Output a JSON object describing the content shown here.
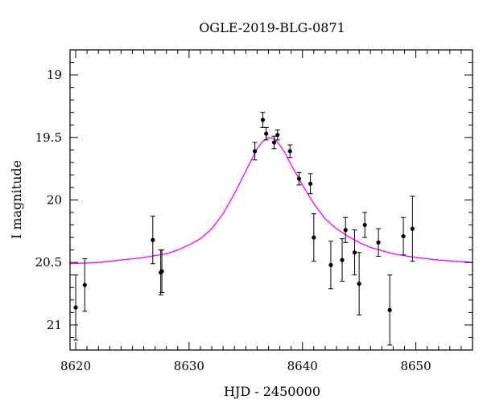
{
  "chart_data": {
    "type": "scatter",
    "title": "OGLE-2019-BLG-0871",
    "xlabel": "HJD - 2450000",
    "ylabel": "I magnitude",
    "xlim": [
      8619.5,
      8655
    ],
    "ylim": [
      21.2,
      18.8
    ],
    "y_inverted": true,
    "x_ticks": [
      8620,
      8630,
      8640,
      8650
    ],
    "y_ticks": [
      19,
      19.5,
      20,
      20.5,
      21
    ],
    "x_tick_labels": [
      "8620",
      "8630",
      "8640",
      "8650"
    ],
    "y_tick_labels": [
      "19",
      "19.5",
      "20",
      "20.5",
      "21"
    ],
    "x_minor_step": 1,
    "y_minor_step": 0.1,
    "grid": false,
    "series": [
      {
        "kind": "points_with_errorbars",
        "color": "#000000",
        "points": [
          {
            "x": 8620.0,
            "y": 20.86,
            "err": 0.26
          },
          {
            "x": 8620.8,
            "y": 20.68,
            "err": 0.21
          },
          {
            "x": 8626.8,
            "y": 20.32,
            "err": 0.19
          },
          {
            "x": 8627.5,
            "y": 20.58,
            "err": 0.18
          },
          {
            "x": 8627.6,
            "y": 20.57,
            "err": 0.17
          },
          {
            "x": 8635.8,
            "y": 19.61,
            "err": 0.07
          },
          {
            "x": 8636.5,
            "y": 19.36,
            "err": 0.06
          },
          {
            "x": 8636.8,
            "y": 19.47,
            "err": 0.05
          },
          {
            "x": 8637.5,
            "y": 19.54,
            "err": 0.05
          },
          {
            "x": 8637.8,
            "y": 19.48,
            "err": 0.04
          },
          {
            "x": 8638.9,
            "y": 19.61,
            "err": 0.05
          },
          {
            "x": 8639.7,
            "y": 19.83,
            "err": 0.05
          },
          {
            "x": 8640.7,
            "y": 19.87,
            "err": 0.08
          },
          {
            "x": 8641.0,
            "y": 20.3,
            "err": 0.19
          },
          {
            "x": 8642.5,
            "y": 20.52,
            "err": 0.19
          },
          {
            "x": 8643.5,
            "y": 20.48,
            "err": 0.17
          },
          {
            "x": 8643.8,
            "y": 20.24,
            "err": 0.1
          },
          {
            "x": 8644.6,
            "y": 20.42,
            "err": 0.18
          },
          {
            "x": 8645.0,
            "y": 20.67,
            "err": 0.25
          },
          {
            "x": 8645.5,
            "y": 20.2,
            "err": 0.1
          },
          {
            "x": 8646.7,
            "y": 20.34,
            "err": 0.11
          },
          {
            "x": 8647.7,
            "y": 20.88,
            "err": 0.28
          },
          {
            "x": 8648.9,
            "y": 20.29,
            "err": 0.15
          },
          {
            "x": 8649.7,
            "y": 20.23,
            "err": 0.26
          }
        ]
      },
      {
        "kind": "model_curve",
        "color": "#ff00ff",
        "points": [
          {
            "x": 8619.5,
            "y": 20.51
          },
          {
            "x": 8622,
            "y": 20.5
          },
          {
            "x": 8624,
            "y": 20.48
          },
          {
            "x": 8626,
            "y": 20.46
          },
          {
            "x": 8628,
            "y": 20.43
          },
          {
            "x": 8629,
            "y": 20.4
          },
          {
            "x": 8630,
            "y": 20.36
          },
          {
            "x": 8631,
            "y": 20.31
          },
          {
            "x": 8632,
            "y": 20.23
          },
          {
            "x": 8633,
            "y": 20.11
          },
          {
            "x": 8634,
            "y": 19.95
          },
          {
            "x": 8635,
            "y": 19.77
          },
          {
            "x": 8636,
            "y": 19.59
          },
          {
            "x": 8636.5,
            "y": 19.53
          },
          {
            "x": 8637,
            "y": 19.5
          },
          {
            "x": 8637.5,
            "y": 19.51
          },
          {
            "x": 8638,
            "y": 19.56
          },
          {
            "x": 8638.5,
            "y": 19.63
          },
          {
            "x": 8639,
            "y": 19.72
          },
          {
            "x": 8640,
            "y": 19.88
          },
          {
            "x": 8641,
            "y": 20.03
          },
          {
            "x": 8642,
            "y": 20.15
          },
          {
            "x": 8643,
            "y": 20.23
          },
          {
            "x": 8644,
            "y": 20.29
          },
          {
            "x": 8645,
            "y": 20.34
          },
          {
            "x": 8646,
            "y": 20.38
          },
          {
            "x": 8648,
            "y": 20.43
          },
          {
            "x": 8650,
            "y": 20.46
          },
          {
            "x": 8652,
            "y": 20.48
          },
          {
            "x": 8655,
            "y": 20.5
          }
        ]
      }
    ]
  }
}
